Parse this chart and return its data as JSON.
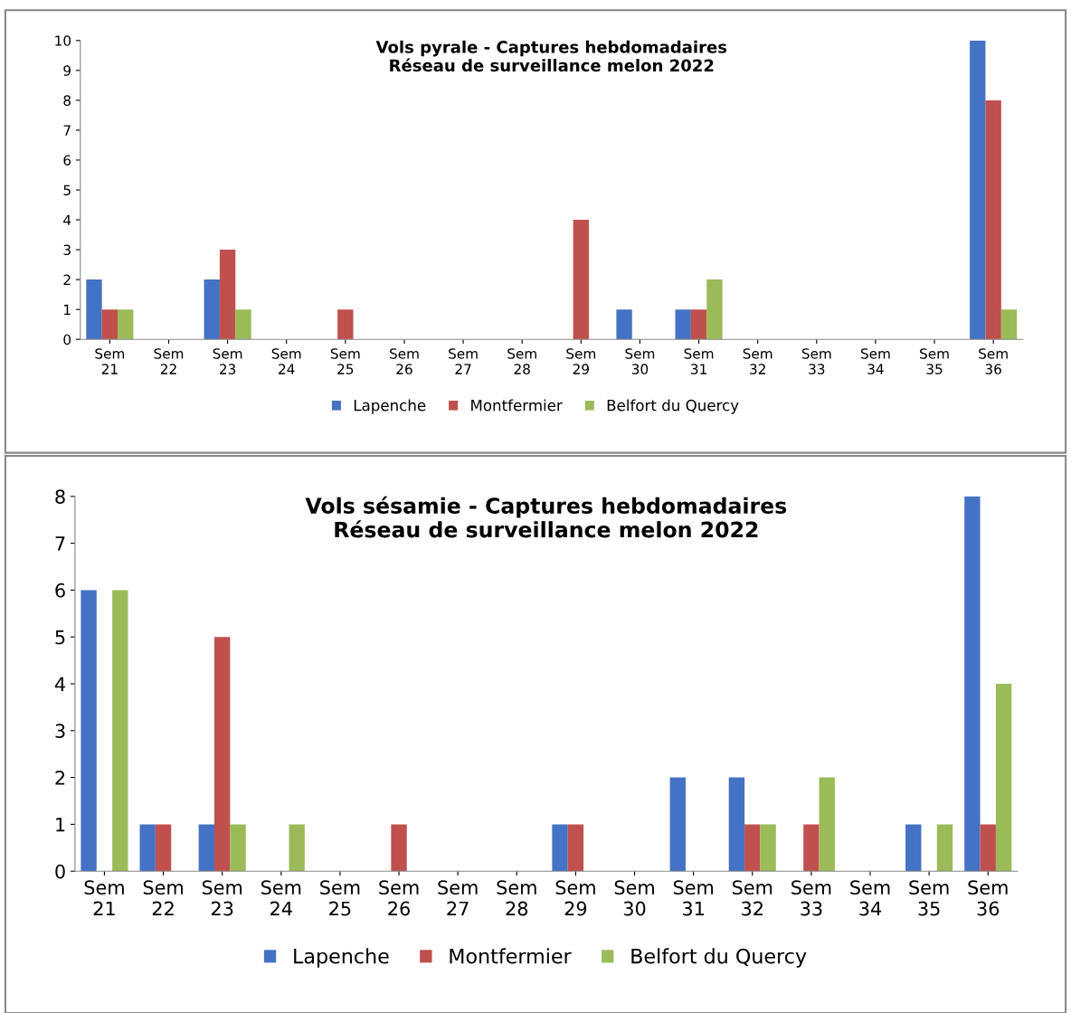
{
  "chart_data": [
    {
      "type": "bar",
      "title": "Vols pyrale - Captures hebdomadaires\nRéseau de surveillance melon 2022",
      "categories": [
        "Sem\n21",
        "Sem\n22",
        "Sem\n23",
        "Sem\n24",
        "Sem\n25",
        "Sem\n26",
        "Sem\n27",
        "Sem\n28",
        "Sem\n29",
        "Sem\n30",
        "Sem\n31",
        "Sem\n32",
        "Sem\n33",
        "Sem\n34",
        "Sem\n35",
        "Sem\n36"
      ],
      "series": [
        {
          "name": "Lapenche",
          "color": "#4472c4",
          "values": [
            2,
            0,
            2,
            0,
            0,
            0,
            0,
            0,
            0,
            1,
            1,
            0,
            0,
            0,
            0,
            10
          ]
        },
        {
          "name": "Montfermier",
          "color": "#c0504d",
          "values": [
            1,
            0,
            3,
            0,
            1,
            0,
            0,
            0,
            4,
            0,
            1,
            0,
            0,
            0,
            0,
            8
          ]
        },
        {
          "name": "Belfort du Quercy",
          "color": "#9bbb59",
          "values": [
            1,
            0,
            1,
            0,
            0,
            0,
            0,
            0,
            0,
            0,
            2,
            0,
            0,
            0,
            0,
            1
          ]
        }
      ],
      "ylim": [
        0,
        10
      ],
      "yticks": [
        0,
        1,
        2,
        3,
        4,
        5,
        6,
        7,
        8,
        9,
        10
      ],
      "grid": false,
      "legend": "bottom"
    },
    {
      "type": "bar",
      "title": "Vols sésamie - Captures hebdomadaires\nRéseau de surveillance melon 2022",
      "categories": [
        "Sem\n21",
        "Sem\n22",
        "Sem\n23",
        "Sem\n24",
        "Sem\n25",
        "Sem\n26",
        "Sem\n27",
        "Sem\n28",
        "Sem\n29",
        "Sem\n30",
        "Sem\n31",
        "Sem\n32",
        "Sem\n33",
        "Sem\n34",
        "Sem\n35",
        "Sem\n36"
      ],
      "series": [
        {
          "name": "Lapenche",
          "color": "#4472c4",
          "values": [
            6,
            1,
            1,
            0,
            0,
            0,
            0,
            0,
            1,
            0,
            2,
            2,
            0,
            0,
            1,
            8
          ]
        },
        {
          "name": "Montfermier",
          "color": "#c0504d",
          "values": [
            0,
            1,
            5,
            0,
            0,
            1,
            0,
            0,
            1,
            0,
            0,
            1,
            1,
            0,
            0,
            1
          ]
        },
        {
          "name": "Belfort du Quercy",
          "color": "#9bbb59",
          "values": [
            6,
            0,
            1,
            1,
            0,
            0,
            0,
            0,
            0,
            0,
            0,
            1,
            2,
            0,
            1,
            4
          ]
        }
      ],
      "ylim": [
        0,
        8
      ],
      "yticks": [
        0,
        1,
        2,
        3,
        4,
        5,
        6,
        7,
        8
      ],
      "grid": false,
      "legend": "bottom"
    }
  ]
}
